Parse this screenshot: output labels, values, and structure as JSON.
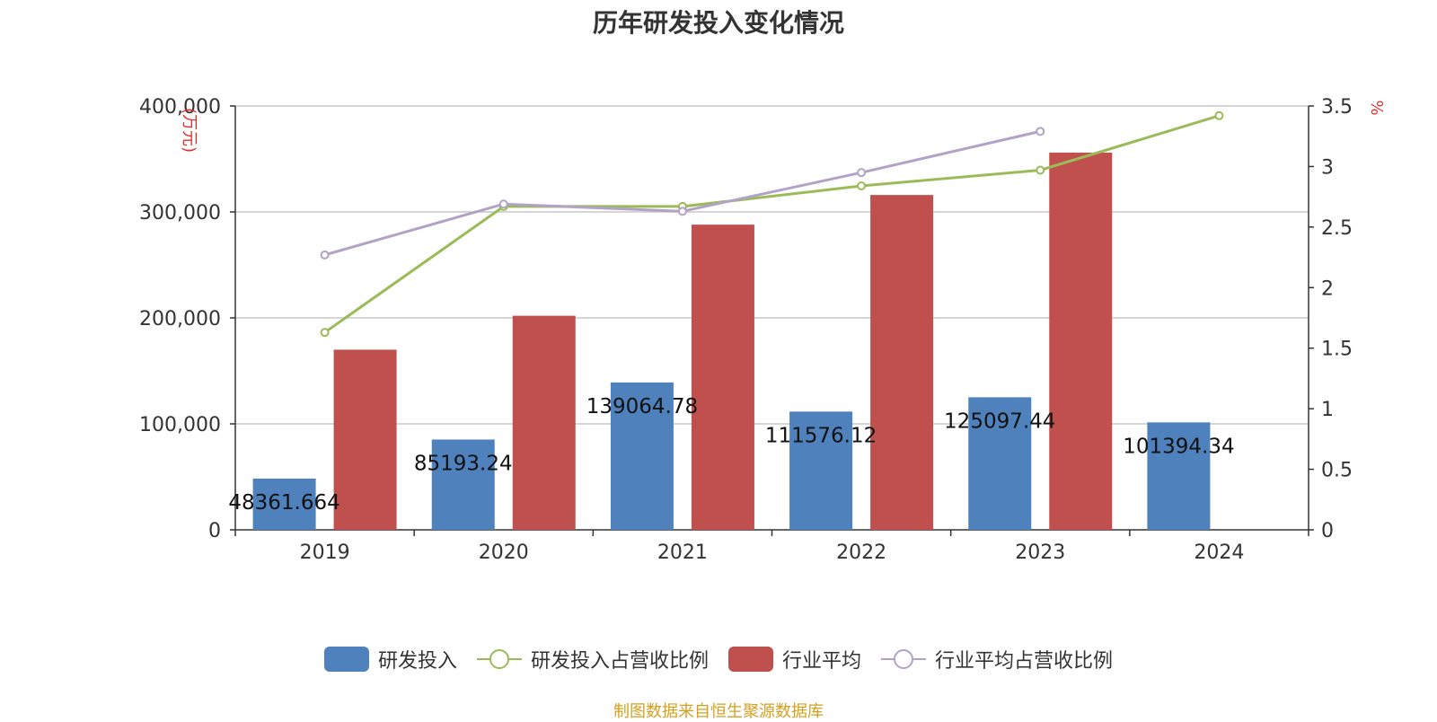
{
  "chart_data": {
    "type": "bar",
    "title": "历年研发投入变化情况",
    "categories": [
      "2019",
      "2020",
      "2021",
      "2022",
      "2023",
      "2024"
    ],
    "y_left": {
      "unit_label": "(万元)",
      "ylim": [
        0,
        400000
      ],
      "ticks": [
        0,
        100000,
        200000,
        300000,
        400000
      ],
      "tick_labels": [
        "0",
        "100,000",
        "200,000",
        "300,000",
        "400,000"
      ]
    },
    "y_right": {
      "unit_label": "%",
      "ylim": [
        0,
        3.5
      ],
      "ticks": [
        0,
        0.5,
        1,
        1.5,
        2,
        2.5,
        3,
        3.5
      ],
      "tick_labels": [
        "0",
        "0.5",
        "1",
        "1.5",
        "2",
        "2.5",
        "3",
        "3.5"
      ]
    },
    "grid": true,
    "legend_position": "bottom",
    "series": [
      {
        "name": "研发投入",
        "kind": "bar",
        "axis": "left",
        "color": "#4f81bd",
        "values": [
          48361.664,
          85193.24,
          139064.78,
          111576.12,
          125097.44,
          101394.34
        ],
        "data_labels": [
          "48361.664",
          "85193.24",
          "139064.78",
          "111576.12",
          "125097.44",
          "101394.34"
        ]
      },
      {
        "name": "研发投入占营收比例",
        "kind": "line",
        "axis": "right",
        "color": "#9bbb59",
        "values": [
          1.63,
          2.67,
          2.67,
          2.84,
          2.97,
          3.42
        ]
      },
      {
        "name": "行业平均",
        "kind": "bar",
        "axis": "left",
        "color": "#c0504d",
        "values": [
          170000,
          202000,
          288000,
          316000,
          356000,
          null
        ]
      },
      {
        "name": "行业平均占营收比例",
        "kind": "line",
        "axis": "right",
        "color": "#b3a2c7",
        "values": [
          2.27,
          2.69,
          2.63,
          2.95,
          3.29,
          null
        ]
      }
    ],
    "source": "制图数据来自恒生聚源数据库"
  }
}
